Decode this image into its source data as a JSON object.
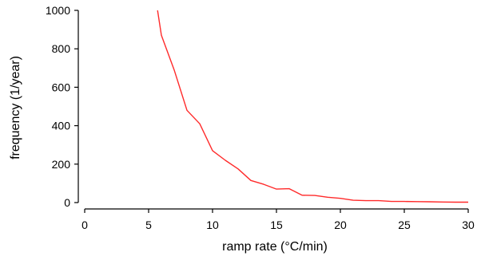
{
  "chart_data": {
    "type": "line",
    "title": "",
    "xlabel": "ramp rate (°C/min)",
    "ylabel": "frequency (1/year)",
    "xlim": [
      0,
      30
    ],
    "ylim": [
      0,
      1000
    ],
    "xticks": [
      0,
      5,
      10,
      15,
      20,
      25,
      30
    ],
    "yticks": [
      0,
      200,
      400,
      600,
      800,
      1000
    ],
    "grid": false,
    "legend": "none",
    "series": [
      {
        "color": "#ff2a2a",
        "x": [
          5.7,
          6,
          7,
          8,
          9,
          10,
          11,
          12,
          13,
          14,
          15,
          16,
          17,
          18,
          19,
          20,
          21,
          22,
          23,
          24,
          25,
          26,
          27,
          28,
          29,
          30
        ],
        "y": [
          1000,
          870,
          690,
          480,
          410,
          270,
          220,
          175,
          115,
          95,
          70,
          72,
          38,
          37,
          28,
          22,
          12,
          10,
          10,
          6,
          6,
          5,
          4,
          3,
          2,
          2
        ]
      }
    ]
  }
}
